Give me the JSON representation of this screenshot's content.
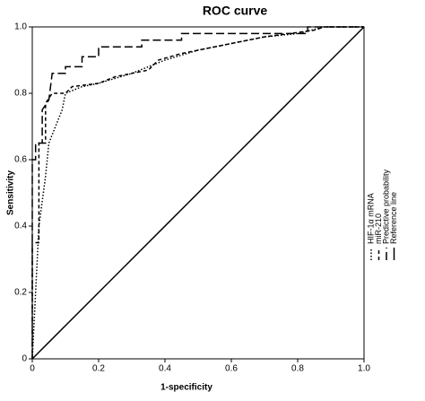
{
  "chart_data": {
    "type": "line",
    "title": "ROC curve",
    "x_label": "1-specificity",
    "y_label": "Sensitivity",
    "xlim": [
      0,
      1
    ],
    "ylim": [
      0,
      1
    ],
    "xticks": [
      0,
      0.2,
      0.4,
      0.6,
      0.8,
      {
        "value": 1,
        "label": "1.0"
      }
    ],
    "yticks": [
      0,
      0.2,
      0.4,
      0.6,
      0.8,
      {
        "value": 1,
        "label": "1.0"
      }
    ],
    "series": [
      {
        "name": "HIF-1α mRNA",
        "color": "#000000",
        "dash": "dotted",
        "x": [
          0,
          0.01,
          0.02,
          0.04,
          0.05,
          0.07,
          0.09,
          0.1,
          0.15,
          0.2,
          0.3,
          0.4,
          0.5,
          0.6,
          0.7,
          0.8,
          0.88,
          1
        ],
        "values": [
          0,
          0.2,
          0.4,
          0.55,
          0.65,
          0.7,
          0.75,
          0.8,
          0.82,
          0.83,
          0.86,
          0.9,
          0.93,
          0.95,
          0.97,
          0.98,
          1,
          1
        ]
      },
      {
        "name": "miR-210",
        "color": "#000000",
        "dash": "dashed",
        "x": [
          0,
          0,
          0.02,
          0.02,
          0.04,
          0.04,
          0.06,
          0.1,
          0.12,
          0.2,
          0.25,
          0.35,
          0.38,
          0.45,
          0.6,
          0.7,
          0.85,
          0.88,
          1
        ],
        "values": [
          0,
          0.35,
          0.35,
          0.65,
          0.65,
          0.77,
          0.8,
          0.8,
          0.82,
          0.83,
          0.85,
          0.87,
          0.9,
          0.92,
          0.95,
          0.97,
          0.99,
          1,
          1
        ]
      },
      {
        "name": "Predictive probability",
        "color": "#000000",
        "dash": "longdash",
        "x": [
          0,
          0,
          0.01,
          0.01,
          0.03,
          0.03,
          0.05,
          0.06,
          0.1,
          0.1,
          0.15,
          0.15,
          0.2,
          0.2,
          0.33,
          0.33,
          0.45,
          0.45,
          0.83,
          0.83,
          1
        ],
        "values": [
          0,
          0.6,
          0.6,
          0.65,
          0.65,
          0.75,
          0.78,
          0.86,
          0.86,
          0.88,
          0.88,
          0.91,
          0.91,
          0.94,
          0.94,
          0.96,
          0.96,
          0.98,
          0.98,
          1,
          1
        ]
      },
      {
        "name": "Reference line",
        "color": "#000000",
        "dash": "solid",
        "x": [
          0,
          1
        ],
        "values": [
          0,
          1
        ]
      }
    ]
  }
}
